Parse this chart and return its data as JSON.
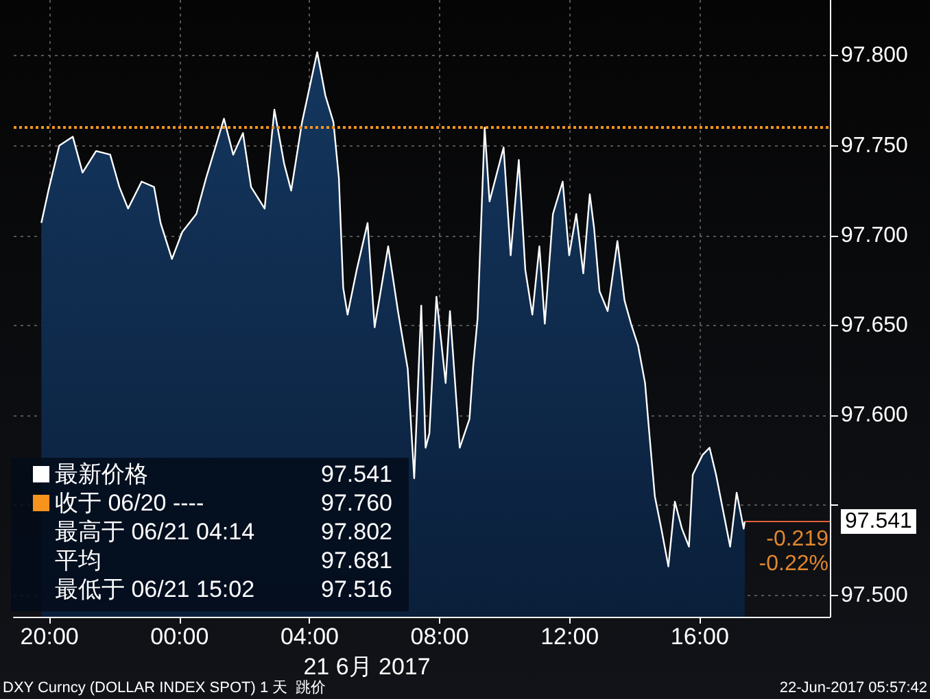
{
  "chart_data": {
    "type": "area",
    "xlabel": "21 6月 2017",
    "series": [
      {
        "name": "最新价格",
        "color": "#ffffff",
        "x": [
          "2017-06-20T19:45",
          "2017-06-20T19:58",
          "2017-06-20T20:18",
          "2017-06-20T20:43",
          "2017-06-20T21:01",
          "2017-06-20T21:26",
          "2017-06-20T21:52",
          "2017-06-20T22:09",
          "2017-06-20T22:25",
          "2017-06-20T22:50",
          "2017-06-20T23:13",
          "2017-06-20T23:25",
          "2017-06-20T23:46",
          "2017-06-21T00:05",
          "2017-06-21T00:31",
          "2017-06-21T00:49",
          "2017-06-21T01:07",
          "2017-06-21T01:22",
          "2017-06-21T01:39",
          "2017-06-21T01:57",
          "2017-06-21T02:12",
          "2017-06-21T02:37",
          "2017-06-21T02:55",
          "2017-06-21T03:13",
          "2017-06-21T03:26",
          "2017-06-21T03:46",
          "2017-06-21T04:14",
          "2017-06-21T04:29",
          "2017-06-21T04:44",
          "2017-06-21T04:54",
          "2017-06-21T05:02",
          "2017-06-21T05:10",
          "2017-06-21T05:27",
          "2017-06-21T05:47",
          "2017-06-21T06:00",
          "2017-06-21T06:25",
          "2017-06-21T06:43",
          "2017-06-21T07:01",
          "2017-06-21T07:13",
          "2017-06-21T07:26",
          "2017-06-21T07:34",
          "2017-06-21T07:41",
          "2017-06-21T07:54",
          "2017-06-21T08:11",
          "2017-06-21T08:19",
          "2017-06-21T08:37",
          "2017-06-21T08:55",
          "2017-06-21T09:02",
          "2017-06-21T09:10",
          "2017-06-21T09:23",
          "2017-06-21T09:32",
          "2017-06-21T09:58",
          "2017-06-21T10:11",
          "2017-06-21T10:26",
          "2017-06-21T10:38",
          "2017-06-21T10:51",
          "2017-06-21T11:04",
          "2017-06-21T11:14",
          "2017-06-21T11:29",
          "2017-06-21T11:47",
          "2017-06-21T11:59",
          "2017-06-21T12:12",
          "2017-06-21T12:25",
          "2017-06-21T12:37",
          "2017-06-21T12:45",
          "2017-06-21T12:55",
          "2017-06-21T13:10",
          "2017-06-21T13:28",
          "2017-06-21T13:41",
          "2017-06-21T13:53",
          "2017-06-21T14:06",
          "2017-06-21T14:19",
          "2017-06-21T14:26",
          "2017-06-21T14:37",
          "2017-06-21T14:49",
          "2017-06-21T15:02",
          "2017-06-21T15:14",
          "2017-06-21T15:27",
          "2017-06-21T15:40",
          "2017-06-21T15:47",
          "2017-06-21T16:05",
          "2017-06-21T16:18",
          "2017-06-21T16:30",
          "2017-06-21T16:43",
          "2017-06-21T16:56",
          "2017-06-21T17:08",
          "2017-06-21T17:21",
          "2017-06-21T17:23"
        ],
        "values": [
          97.707,
          97.725,
          97.75,
          97.755,
          97.735,
          97.747,
          97.745,
          97.727,
          97.715,
          97.73,
          97.727,
          97.707,
          97.687,
          97.702,
          97.712,
          97.732,
          97.75,
          97.765,
          97.745,
          97.757,
          97.727,
          97.715,
          97.77,
          97.74,
          97.725,
          97.763,
          97.802,
          97.778,
          97.763,
          97.732,
          97.671,
          97.656,
          97.681,
          97.707,
          97.649,
          97.694,
          97.658,
          97.626,
          97.565,
          97.661,
          97.582,
          97.59,
          97.666,
          97.618,
          97.658,
          97.582,
          97.598,
          97.628,
          97.654,
          97.76,
          97.719,
          97.749,
          97.689,
          97.742,
          97.681,
          97.656,
          97.694,
          97.651,
          97.712,
          97.73,
          97.689,
          97.712,
          97.679,
          97.723,
          97.704,
          97.669,
          97.658,
          97.697,
          97.664,
          97.651,
          97.639,
          97.618,
          97.593,
          97.555,
          97.537,
          97.516,
          97.552,
          97.537,
          97.527,
          97.567,
          97.578,
          97.582,
          97.567,
          97.547,
          97.527,
          97.557,
          97.537,
          97.541
        ]
      }
    ],
    "xlim": [
      "2017-06-20T18:54",
      "2017-06-21T20:00"
    ],
    "xticks": [
      {
        "value": "2017-06-20T20:00",
        "label": "20:00"
      },
      {
        "value": "2017-06-21T00:00",
        "label": "00:00"
      },
      {
        "value": "2017-06-21T04:00",
        "label": "04:00"
      },
      {
        "value": "2017-06-21T08:00",
        "label": "08:00"
      },
      {
        "value": "2017-06-21T12:00",
        "label": "12:00"
      },
      {
        "value": "2017-06-21T16:00",
        "label": "16:00"
      }
    ],
    "ylim": [
      97.488,
      97.831
    ],
    "yticks": [
      {
        "value": 97.5,
        "label": "97.500"
      },
      {
        "value": 97.55,
        "label": null
      },
      {
        "value": 97.6,
        "label": "97.600"
      },
      {
        "value": 97.65,
        "label": "97.650"
      },
      {
        "value": 97.7,
        "label": "97.700"
      },
      {
        "value": 97.75,
        "label": "97.750"
      },
      {
        "value": 97.8,
        "label": "97.800"
      }
    ],
    "grid": true,
    "legend": "bottom left",
    "marker": "none",
    "ref_lines": [
      {
        "axis": "y",
        "value": 97.76,
        "label": "收于 06/20 ----",
        "color": "#f7941d",
        "line_style": "dotted"
      }
    ],
    "annotations": [
      "97.541",
      "最高于 06/21 04:14",
      "97.802",
      "平均",
      "97.681",
      "最低于 06/21 15:02",
      "97.516",
      "97.541",
      "-0.219",
      "-0.22%",
      "DXY Curncy (DOLLAR INDEX SPOT) 1 天  跳价",
      "22-Jun-2017 05:57:42",
      "97.760"
    ]
  }
}
